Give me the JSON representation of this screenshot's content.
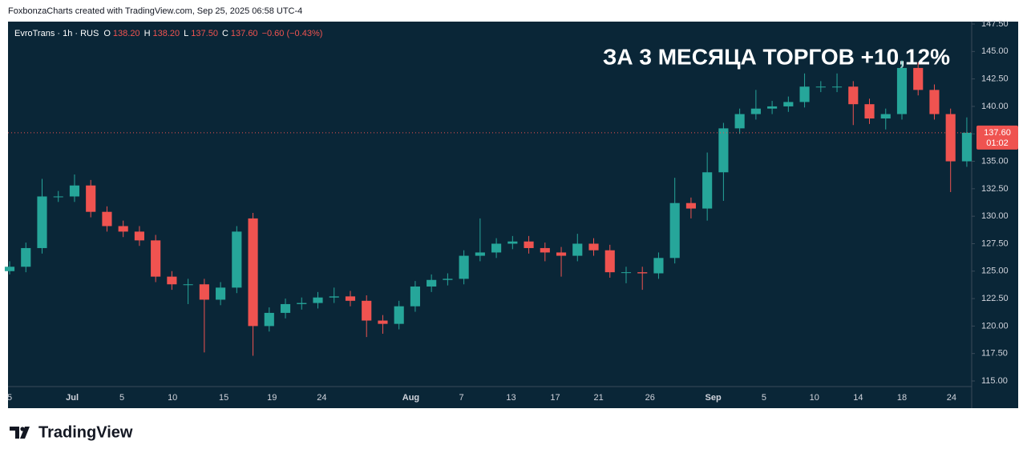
{
  "page": {
    "header": "FoxbonzaCharts created with TradingView.com, Sep 25, 2025 06:58 UTC-4",
    "brand": "TradingView"
  },
  "chart_data": {
    "type": "candlestick",
    "title": "ЗА 3 МЕСЯЦА ТОРГОВ +10,12%",
    "legend": {
      "symbol": "EvroTrans · 1h · RUS",
      "items": [
        {
          "key": "O",
          "value": "138.20"
        },
        {
          "key": "H",
          "value": "138.20"
        },
        {
          "key": "L",
          "value": "137.50"
        },
        {
          "key": "C",
          "value": "137.60"
        }
      ],
      "change": "−0.60 (−0.43%)"
    },
    "open": [
      125.0,
      125.4,
      127.1,
      131.8,
      131.8,
      132.8,
      130.4,
      129.1,
      128.6,
      127.8,
      124.5,
      123.8,
      123.8,
      122.4,
      123.5,
      129.8,
      120.0,
      121.2,
      122.0,
      122.1,
      122.6,
      122.7,
      122.3,
      120.5,
      120.2,
      121.8,
      123.6,
      124.2,
      124.3,
      126.4,
      126.7,
      127.5,
      127.7,
      127.1,
      126.7,
      126.4,
      127.5,
      126.9,
      124.9,
      124.9,
      124.8,
      126.2,
      131.2,
      130.7,
      134.0,
      138.0,
      139.3,
      139.8,
      140.0,
      140.4,
      141.8,
      141.8,
      141.8,
      140.2,
      138.9,
      139.3,
      143.5,
      141.5,
      139.3,
      135.0
    ],
    "high": [
      125.9,
      127.6,
      133.4,
      132.3,
      133.8,
      133.3,
      130.9,
      129.6,
      129.1,
      128.3,
      125.0,
      124.3,
      124.3,
      124.0,
      129.1,
      130.3,
      121.7,
      122.5,
      122.6,
      123.1,
      123.5,
      123.2,
      122.8,
      121.0,
      122.3,
      124.1,
      124.7,
      124.8,
      126.9,
      129.8,
      128.0,
      128.2,
      128.2,
      127.6,
      127.2,
      128.4,
      128.0,
      127.4,
      125.4,
      125.4,
      126.7,
      133.5,
      131.7,
      135.8,
      138.5,
      139.8,
      141.5,
      140.5,
      140.9,
      143.0,
      142.3,
      143.0,
      142.3,
      140.7,
      139.8,
      144.2,
      144.0,
      142.0,
      139.8,
      139.0
    ],
    "low": [
      124.7,
      124.9,
      126.6,
      131.3,
      131.3,
      129.9,
      128.6,
      128.1,
      127.3,
      124.0,
      123.3,
      122.0,
      117.6,
      121.9,
      123.0,
      117.3,
      119.5,
      120.7,
      121.5,
      121.6,
      122.1,
      121.8,
      119.0,
      119.3,
      119.7,
      121.3,
      123.1,
      123.7,
      123.8,
      125.9,
      126.2,
      127.0,
      126.6,
      125.9,
      124.5,
      125.9,
      126.4,
      124.4,
      123.9,
      123.3,
      124.3,
      125.7,
      129.8,
      129.6,
      131.4,
      137.5,
      138.8,
      139.3,
      139.5,
      139.9,
      141.3,
      141.3,
      138.3,
      138.4,
      137.9,
      138.8,
      141.0,
      138.8,
      132.2,
      134.5
    ],
    "close": [
      125.4,
      127.1,
      131.8,
      131.8,
      132.8,
      130.4,
      129.1,
      128.6,
      127.8,
      124.5,
      123.8,
      123.8,
      122.4,
      123.5,
      128.6,
      120.0,
      121.2,
      122.0,
      122.1,
      122.6,
      122.7,
      122.3,
      120.5,
      120.2,
      121.8,
      123.6,
      124.2,
      124.3,
      126.4,
      126.7,
      127.5,
      127.7,
      127.1,
      126.7,
      126.4,
      127.5,
      126.9,
      124.9,
      124.9,
      124.8,
      126.2,
      131.2,
      130.7,
      134.0,
      138.0,
      139.3,
      139.8,
      140.0,
      140.4,
      141.8,
      141.8,
      141.8,
      140.2,
      138.9,
      139.3,
      143.5,
      141.5,
      139.3,
      135.0,
      137.6
    ],
    "up_color": "#26a69a",
    "down_color": "#ef5350",
    "last_price": {
      "value": 137.6,
      "label": "137.60"
    },
    "countdown": "01:02",
    "xlim": [
      -0.1,
      59.3
    ],
    "xticks": [
      {
        "value": 0,
        "label": "5"
      },
      {
        "value": 3.86,
        "label": "Jul"
      },
      {
        "value": 6.92,
        "label": "5"
      },
      {
        "value": 10.04,
        "label": "10"
      },
      {
        "value": 13.2,
        "label": "15"
      },
      {
        "value": 16.17,
        "label": "19"
      },
      {
        "value": 19.24,
        "label": "24"
      },
      {
        "value": 24.73,
        "label": "Aug"
      },
      {
        "value": 27.85,
        "label": "7"
      },
      {
        "value": 30.91,
        "label": "13"
      },
      {
        "value": 33.63,
        "label": "17"
      },
      {
        "value": 36.3,
        "label": "21"
      },
      {
        "value": 39.47,
        "label": "26"
      },
      {
        "value": 43.37,
        "label": "Sep"
      },
      {
        "value": 46.5,
        "label": "5"
      },
      {
        "value": 49.6,
        "label": "10"
      },
      {
        "value": 52.3,
        "label": "14"
      },
      {
        "value": 55.0,
        "label": "18"
      },
      {
        "value": 58.06,
        "label": "24"
      }
    ],
    "ylim": [
      114.49,
      147.72
    ],
    "yticks": [
      {
        "value": 115,
        "label": "115.00"
      },
      {
        "value": 117.5,
        "label": "117.50"
      },
      {
        "value": 120,
        "label": "120.00"
      },
      {
        "value": 122.5,
        "label": "122.50"
      },
      {
        "value": 125,
        "label": "125.00"
      },
      {
        "value": 127.5,
        "label": "127.50"
      },
      {
        "value": 130,
        "label": "130.00"
      },
      {
        "value": 132.5,
        "label": "132.50"
      },
      {
        "value": 135,
        "label": "135.00"
      },
      {
        "value": 137.5,
        "label": "137.50"
      },
      {
        "value": 140,
        "label": "140.00"
      },
      {
        "value": 142.5,
        "label": "142.50"
      },
      {
        "value": 145,
        "label": "145.00"
      },
      {
        "value": 147.5,
        "label": "147.50"
      }
    ],
    "grid": false
  }
}
